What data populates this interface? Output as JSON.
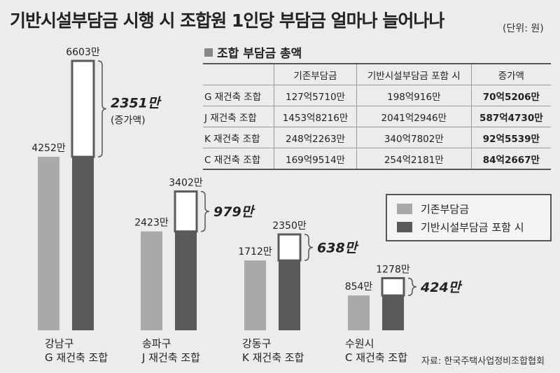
{
  "title": "기반시설부담금 시행 시 조합원 1인당 부담금 얼마나 늘어나나",
  "unit_note": "(단위: 원)",
  "source": "자료: 한국주택사업정비조합협회",
  "colors": {
    "existing": "#a9a9a9",
    "with_infra": "#5a5a5a",
    "increase_area": "#ffffff"
  },
  "table": {
    "title": "조합 부담금 총액",
    "headers": [
      "",
      "기존부담금",
      "기반시설부담금 포함 시",
      "증가액"
    ],
    "rows": [
      [
        "G 재건축 조합",
        "127억5710만",
        "198억916만",
        "70억5206만"
      ],
      [
        "J  재건축 조합",
        "1453억8216만",
        "2041억2946만",
        "587억4730만"
      ],
      [
        "K 재건축 조합",
        "248억2263만",
        "340억7802만",
        "92억5539만"
      ],
      [
        "C 재건축 조합",
        "169억9514만",
        "254억2181만",
        "84억2667만"
      ]
    ]
  },
  "chart_data": {
    "type": "bar",
    "categories": [
      {
        "line1": "강남구",
        "line2": "G 재건축 조합"
      },
      {
        "line1": "송파구",
        "line2": "J 재건축 조합"
      },
      {
        "line1": "강동구",
        "line2": "K 재건축 조합"
      },
      {
        "line1": "수원시",
        "line2": "C 재건축 조합"
      }
    ],
    "series": [
      {
        "name": "기존부담금",
        "values": [
          4252,
          2423,
          1712,
          854
        ],
        "labels": [
          "4252만",
          "2423만",
          "1712만",
          "854만"
        ]
      },
      {
        "name": "기반시설부담금 포함 시",
        "values": [
          6603,
          3402,
          2350,
          1278
        ],
        "labels": [
          "6603만",
          "3402만",
          "2350만",
          "1278만"
        ]
      }
    ],
    "increase": {
      "values": [
        2351,
        979,
        638,
        424
      ],
      "labels": [
        "2351만",
        "979만",
        "638만",
        "424만"
      ],
      "note": "(증가액)"
    },
    "units": "만원",
    "ylim": [
      0,
      6603
    ],
    "legend_position": "right",
    "grid": false
  }
}
